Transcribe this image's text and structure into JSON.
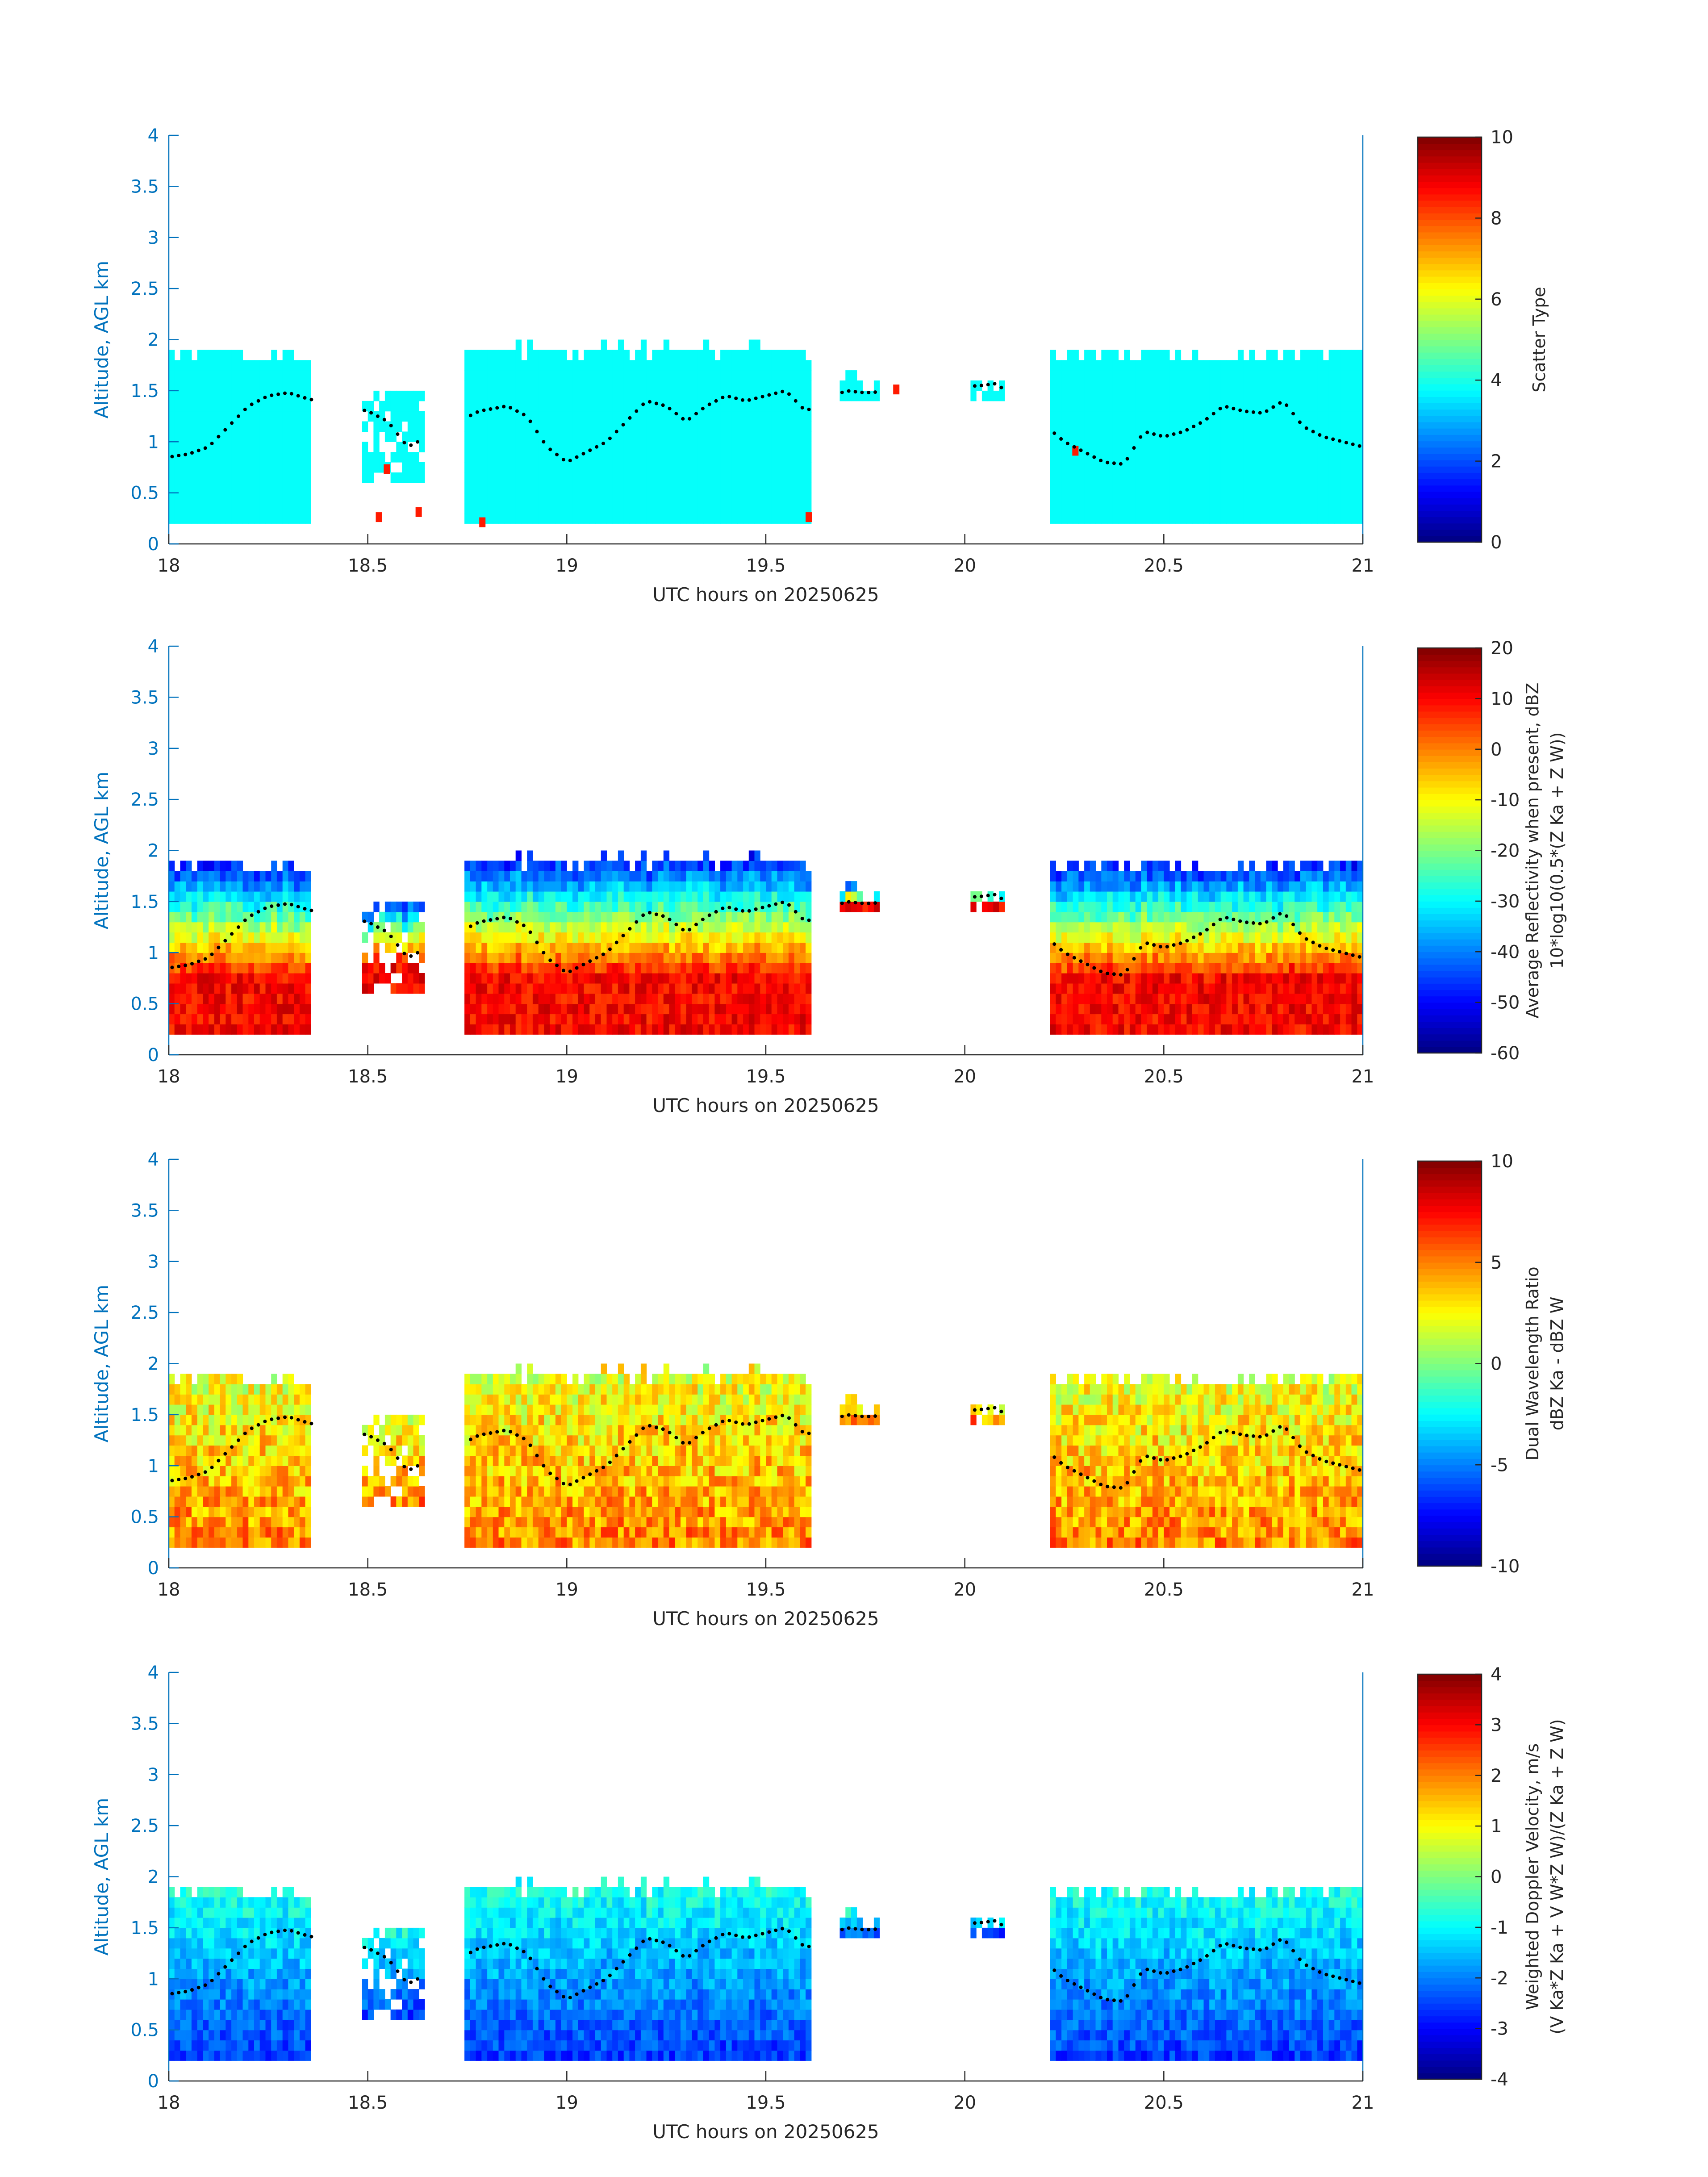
{
  "chart_data": [
    {
      "type": "heatmap",
      "title": "",
      "xlabel": "UTC hours on 20250625",
      "ylabel": "Altitude, AGL km",
      "xlim": [
        18,
        21
      ],
      "ylim": [
        0,
        4
      ],
      "xticks": [
        "18",
        "18.5",
        "19",
        "19.5",
        "20",
        "20.5",
        "21"
      ],
      "yticks": [
        "0",
        "0.5",
        "1",
        "1.5",
        "2",
        "2.5",
        "3",
        "3.5",
        "4"
      ],
      "colorbar": {
        "label_lines": [
          "Scatter Type"
        ],
        "range": [
          0,
          10
        ],
        "ticks": [
          "0",
          "2",
          "4",
          "6",
          "8",
          "10"
        ],
        "colormap": "jet"
      },
      "field": "scatter_type",
      "note_values": {
        "cloud": 3.8,
        "speckle": 8.5
      }
    },
    {
      "type": "heatmap",
      "title": "",
      "xlabel": "UTC hours on 20250625",
      "ylabel": "Altitude, AGL km",
      "xlim": [
        18,
        21
      ],
      "ylim": [
        0,
        4
      ],
      "xticks": [
        "18",
        "18.5",
        "19",
        "19.5",
        "20",
        "20.5",
        "21"
      ],
      "yticks": [
        "0",
        "0.5",
        "1",
        "1.5",
        "2",
        "2.5",
        "3",
        "3.5",
        "4"
      ],
      "colorbar": {
        "label_lines": [
          "Average Reflectivity when present, dBZ",
          "10*log10(0.5*(Z Ka + Z W))"
        ],
        "range": [
          -60,
          20
        ],
        "ticks": [
          "-60",
          "-50",
          "-40",
          "-30",
          "-20",
          "-10",
          "0",
          "10",
          "20"
        ],
        "colormap": "jet"
      },
      "field": "reflectivity"
    },
    {
      "type": "heatmap",
      "title": "",
      "xlabel": "UTC hours on 20250625",
      "ylabel": "Altitude, AGL km",
      "xlim": [
        18,
        21
      ],
      "ylim": [
        0,
        4
      ],
      "xticks": [
        "18",
        "18.5",
        "19",
        "19.5",
        "20",
        "20.5",
        "21"
      ],
      "yticks": [
        "0",
        "0.5",
        "1",
        "1.5",
        "2",
        "2.5",
        "3",
        "3.5",
        "4"
      ],
      "colorbar": {
        "label_lines": [
          "Dual Wavelength Ratio",
          "dBZ Ka - dBZ W"
        ],
        "range": [
          -10,
          10
        ],
        "ticks": [
          "-10",
          "-5",
          "0",
          "5",
          "10"
        ],
        "colormap": "jet"
      },
      "field": "dwr"
    },
    {
      "type": "heatmap",
      "title": "",
      "xlabel": "UTC hours on 20250625",
      "ylabel": "Altitude, AGL km",
      "xlim": [
        18,
        21
      ],
      "ylim": [
        0,
        4
      ],
      "xticks": [
        "18",
        "18.5",
        "19",
        "19.5",
        "20",
        "20.5",
        "21"
      ],
      "yticks": [
        "0",
        "0.5",
        "1",
        "1.5",
        "2",
        "2.5",
        "3",
        "3.5",
        "4"
      ],
      "colorbar": {
        "label_lines": [
          "Weighted Doppler Velocity, m/s",
          "(V Ka*Z Ka + V W*Z W)/(Z Ka + Z W)"
        ],
        "range": [
          -4,
          4
        ],
        "ticks": [
          "-4",
          "-3",
          "-2",
          "-1",
          "0",
          "1",
          "2",
          "3",
          "4"
        ],
        "colormap": "jet"
      },
      "field": "velocity"
    }
  ],
  "cloud_layers": [
    {
      "x0": 18.0,
      "x1": 18.36,
      "base_km": 0.2,
      "top_km": 1.85
    },
    {
      "x0": 18.49,
      "x1": 18.64,
      "base_km": 0.6,
      "top_km": 1.5
    },
    {
      "x0": 18.75,
      "x1": 19.62,
      "base_km": 0.2,
      "top_km": 1.9
    },
    {
      "x0": 19.68,
      "x1": 19.78,
      "base_km": 1.4,
      "top_km": 1.6
    },
    {
      "x0": 20.02,
      "x1": 20.1,
      "base_km": 1.45,
      "top_km": 1.58
    },
    {
      "x0": 20.22,
      "x1": 21.0,
      "base_km": 0.2,
      "top_km": 1.85
    }
  ],
  "cloud_base_track": {
    "x": [
      18.0,
      18.05,
      18.1,
      18.15,
      18.2,
      18.25,
      18.3,
      18.35,
      18.5,
      18.55,
      18.6,
      18.78,
      18.85,
      18.9,
      18.95,
      19.0,
      19.05,
      19.1,
      19.15,
      19.2,
      19.25,
      19.3,
      19.35,
      19.4,
      19.45,
      19.5,
      19.55,
      19.6,
      19.7,
      19.75,
      20.04,
      20.08,
      20.25,
      20.3,
      20.35,
      20.4,
      20.45,
      20.5,
      20.55,
      20.6,
      20.65,
      20.7,
      20.75,
      20.8,
      20.85,
      20.9,
      20.95,
      21.0
    ],
    "y": [
      0.85,
      0.88,
      0.95,
      1.15,
      1.35,
      1.45,
      1.48,
      1.42,
      1.3,
      1.2,
      0.95,
      1.3,
      1.35,
      1.25,
      0.95,
      0.8,
      0.9,
      1.0,
      1.2,
      1.4,
      1.35,
      1.2,
      1.35,
      1.45,
      1.4,
      1.45,
      1.5,
      1.3,
      1.5,
      1.48,
      1.55,
      1.57,
      1.0,
      0.9,
      0.8,
      0.78,
      1.1,
      1.05,
      1.1,
      1.2,
      1.35,
      1.3,
      1.28,
      1.4,
      1.15,
      1.05,
      1.0,
      0.95
    ]
  }
}
